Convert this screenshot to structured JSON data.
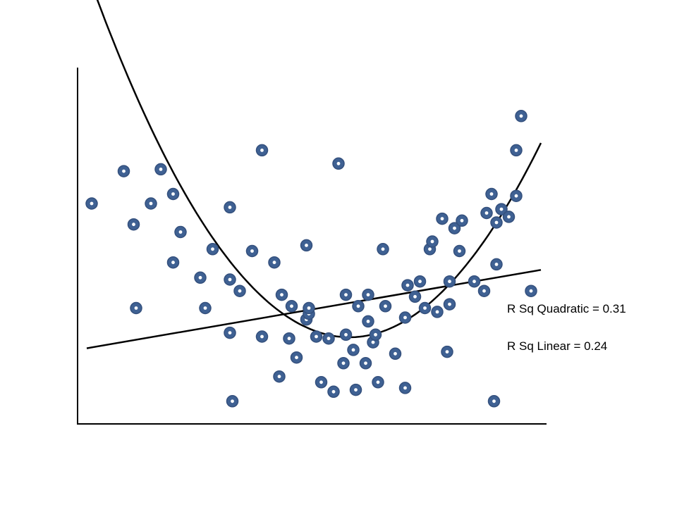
{
  "chart_data": {
    "type": "scatter",
    "title": "",
    "xlabel": "",
    "ylabel": "",
    "xlim": [
      0,
      100
    ],
    "ylim": [
      0,
      100
    ],
    "grid": false,
    "points": [
      [
        6,
        65
      ],
      [
        12.5,
        73.5
      ],
      [
        14.5,
        59.5
      ],
      [
        15,
        37.5
      ],
      [
        18,
        65
      ],
      [
        20,
        74
      ],
      [
        22.5,
        67.5
      ],
      [
        22.5,
        49.5
      ],
      [
        24,
        57.5
      ],
      [
        28,
        45.5
      ],
      [
        29,
        37.5
      ],
      [
        30.5,
        53
      ],
      [
        34,
        31
      ],
      [
        34,
        64
      ],
      [
        34,
        45
      ],
      [
        34.5,
        13
      ],
      [
        36,
        42
      ],
      [
        38.5,
        52.5
      ],
      [
        40.5,
        79
      ],
      [
        40.5,
        30
      ],
      [
        43,
        49.5
      ],
      [
        44,
        19.5
      ],
      [
        44.5,
        41
      ],
      [
        46,
        29.5
      ],
      [
        46.5,
        38
      ],
      [
        47.5,
        24.5
      ],
      [
        49.5,
        34.5
      ],
      [
        49.5,
        54
      ],
      [
        50,
        36
      ],
      [
        50,
        37.5
      ],
      [
        51.5,
        30
      ],
      [
        52.5,
        18
      ],
      [
        54,
        29.5
      ],
      [
        55,
        15.5
      ],
      [
        56,
        75.5
      ],
      [
        57,
        23
      ],
      [
        57.5,
        30.5
      ],
      [
        57.5,
        41
      ],
      [
        59,
        26.5
      ],
      [
        59.5,
        16
      ],
      [
        60,
        38
      ],
      [
        61.5,
        23
      ],
      [
        62,
        41
      ],
      [
        62,
        34
      ],
      [
        63,
        28.5
      ],
      [
        63.5,
        30.5
      ],
      [
        64,
        18
      ],
      [
        65,
        53
      ],
      [
        65.5,
        38
      ],
      [
        67.5,
        25.5
      ],
      [
        69.5,
        35
      ],
      [
        69.5,
        16.5
      ],
      [
        70,
        43.5
      ],
      [
        71.5,
        40.5
      ],
      [
        72.5,
        44.5
      ],
      [
        73.5,
        37.5
      ],
      [
        74.5,
        53
      ],
      [
        75,
        55
      ],
      [
        76,
        36.5
      ],
      [
        77,
        61
      ],
      [
        78,
        26
      ],
      [
        78.5,
        44.5
      ],
      [
        78.5,
        38.5
      ],
      [
        79.5,
        58.5
      ],
      [
        80.5,
        52.5
      ],
      [
        81,
        60.5
      ],
      [
        83.5,
        44.5
      ],
      [
        85.5,
        42
      ],
      [
        86,
        62.5
      ],
      [
        87,
        67.5
      ],
      [
        87.5,
        13
      ],
      [
        88,
        49
      ],
      [
        88,
        60
      ],
      [
        89,
        63.5
      ],
      [
        90.5,
        61.5
      ],
      [
        92,
        79
      ],
      [
        92,
        67
      ],
      [
        93,
        88
      ],
      [
        95,
        42
      ]
    ],
    "curves": [
      {
        "kind": "quadratic",
        "x_range": [
          5,
          97
        ],
        "coefficients": [
          145.13,
          -3.96,
          0.034
        ]
      },
      {
        "kind": "linear",
        "x_range": [
          5,
          97
        ],
        "coefficients": [
          25.8,
          0.224
        ]
      }
    ],
    "annotations": [
      {
        "id": "quadratic",
        "text": "R Sq Quadratic = 0.31"
      },
      {
        "id": "linear",
        "text": "R Sq Linear = 0.24"
      }
    ],
    "colors": {
      "marker_fill": "#3f6193",
      "marker_edge": "#34507d",
      "marker_center": "#ffffff",
      "line": "#000000",
      "axis": "#000000"
    }
  }
}
